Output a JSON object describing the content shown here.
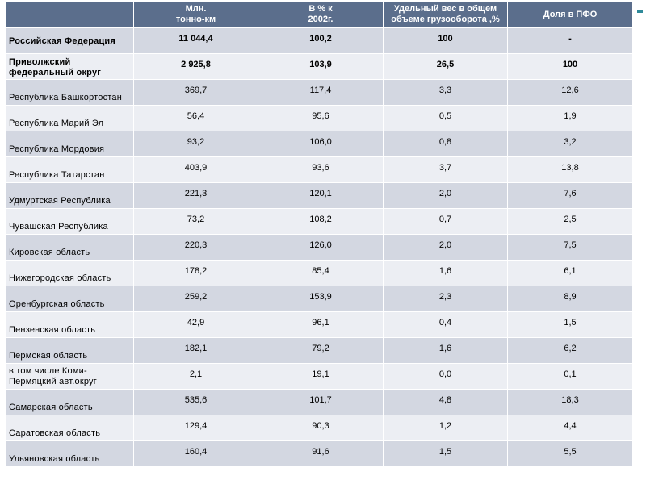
{
  "table": {
    "headers": [
      "",
      "Млн.\nтонно-км",
      "В % к\n2002г.",
      "Удельный вес в общем\nобъеме грузооборота ,%",
      "Доля в ПФО"
    ],
    "rows": [
      {
        "name": "Российская Федерация",
        "volume": "11 044,4",
        "pct_2002": "100,2",
        "share_total": "100",
        "share_pfo": "-",
        "bold": true
      },
      {
        "name": "Приволжский\nфедеральный округ",
        "volume": "2 925,8",
        "pct_2002": "103,9",
        "share_total": "26,5",
        "share_pfo": "100",
        "bold": true
      },
      {
        "name": "Республика Башкортостан",
        "volume": "369,7",
        "pct_2002": "117,4",
        "share_total": "3,3",
        "share_pfo": "12,6"
      },
      {
        "name": "Республика Марий Эл",
        "volume": "56,4",
        "pct_2002": "95,6",
        "share_total": "0,5",
        "share_pfo": "1,9"
      },
      {
        "name": "Республика Мордовия",
        "volume": "93,2",
        "pct_2002": "106,0",
        "share_total": "0,8",
        "share_pfo": "3,2"
      },
      {
        "name": "Республика Татарстан",
        "volume": "403,9",
        "pct_2002": "93,6",
        "share_total": "3,7",
        "share_pfo": "13,8"
      },
      {
        "name": "Удмуртская Республика",
        "volume": "221,3",
        "pct_2002": "120,1",
        "share_total": "2,0",
        "share_pfo": "7,6"
      },
      {
        "name": "Чувашская Республика",
        "volume": "73,2",
        "pct_2002": "108,2",
        "share_total": "0,7",
        "share_pfo": "2,5"
      },
      {
        "name": "Кировская область",
        "volume": "220,3",
        "pct_2002": "126,0",
        "share_total": "2,0",
        "share_pfo": "7,5"
      },
      {
        "name": "Нижегородская область",
        "volume": "178,2",
        "pct_2002": "85,4",
        "share_total": "1,6",
        "share_pfo": "6,1"
      },
      {
        "name": "Оренбургская область",
        "volume": "259,2",
        "pct_2002": "153,9",
        "share_total": "2,3",
        "share_pfo": "8,9"
      },
      {
        "name": "Пензенская область",
        "volume": "42,9",
        "pct_2002": "96,1",
        "share_total": "0,4",
        "share_pfo": "1,5"
      },
      {
        "name": "Пермская область",
        "volume": "182,1",
        "pct_2002": "79,2",
        "share_total": "1,6",
        "share_pfo": "6,2"
      },
      {
        "name": "в том числе Коми-\nПермяцкий авт.округ",
        "volume": "2,1",
        "pct_2002": "19,1",
        "share_total": "0,0",
        "share_pfo": "0,1"
      },
      {
        "name": "Самарская область",
        "volume": "535,6",
        "pct_2002": "101,7",
        "share_total": "4,8",
        "share_pfo": "18,3"
      },
      {
        "name": "Саратовская область",
        "volume": "129,4",
        "pct_2002": "90,3",
        "share_total": "1,2",
        "share_pfo": "4,4"
      },
      {
        "name": "Ульяновская область",
        "volume": "160,4",
        "pct_2002": "91,6",
        "share_total": "1,5",
        "share_pfo": "5,5"
      }
    ]
  },
  "colors": {
    "header_bg": "#5b6e8c",
    "row_dark": "#d3d7e1",
    "row_light": "#eceef3",
    "edge_marker": "#2f8a9a"
  }
}
